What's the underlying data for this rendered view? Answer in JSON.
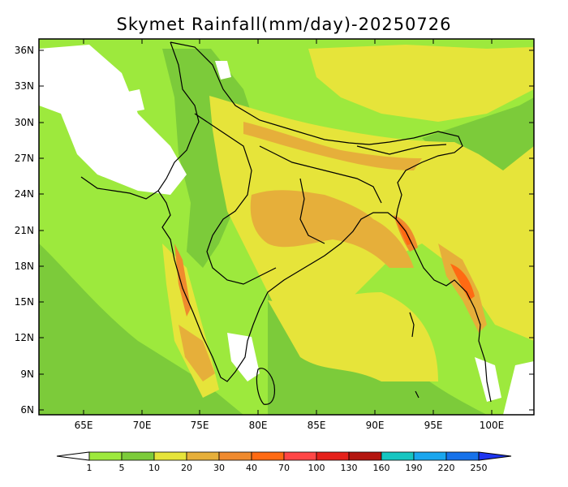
{
  "title": "Skymet Rainfall(mm/day)-20250726",
  "map": {
    "lon_range": [
      61,
      103
    ],
    "lat_range": [
      5.5,
      37
    ],
    "lon_ticks": [
      "65E",
      "70E",
      "75E",
      "80E",
      "85E",
      "90E",
      "95E",
      "100E"
    ],
    "lat_ticks": [
      "36N",
      "33N",
      "30N",
      "27N",
      "24N",
      "21N",
      "18N",
      "15N",
      "12N",
      "9N",
      "6N"
    ]
  },
  "legend": {
    "labels": [
      "1",
      "5",
      "10",
      "20",
      "30",
      "40",
      "70",
      "100",
      "130",
      "160",
      "190",
      "220",
      "250"
    ],
    "colors": {
      "lt1": "#ffffff",
      "1-5": "#9de93d",
      "5-10": "#7ccb3a",
      "10-20": "#e6e43a",
      "20-30": "#e6af3a",
      "30-40": "#ef8a2e",
      "40-70": "#ff6a13",
      "70-100": "#ff4646",
      "100-130": "#e5201a",
      "130-160": "#b3150f",
      "160-190": "#16c6c1",
      "190-220": "#1aa6ee",
      "220-250": "#1672ea",
      "gt250": "#1e35f0"
    }
  }
}
